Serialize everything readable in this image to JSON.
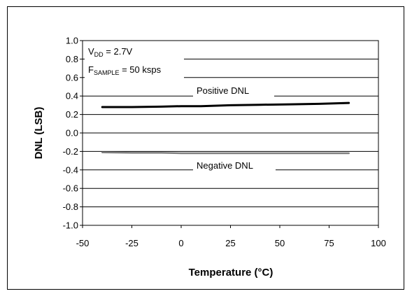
{
  "chart_data": {
    "type": "line",
    "title": "",
    "xlabel": "Temperature (°C)",
    "ylabel": "DNL (LSB)",
    "xlim": [
      -50,
      100
    ],
    "ylim": [
      -1.0,
      1.0
    ],
    "x_ticks": [
      "-50",
      "-25",
      "0",
      "25",
      "50",
      "75",
      "100"
    ],
    "y_ticks": [
      "1.0",
      "0.8",
      "0.6",
      "0.4",
      "0.2",
      "0.0",
      "-0.2",
      "-0.4",
      "-0.6",
      "-0.8",
      "-1.0"
    ],
    "grid": "horizontal",
    "series": [
      {
        "name": "Positive DNL",
        "color": "#000000",
        "x": [
          -40,
          -25,
          -10,
          0,
          10,
          25,
          40,
          55,
          70,
          85
        ],
        "y": [
          0.28,
          0.28,
          0.285,
          0.29,
          0.29,
          0.3,
          0.305,
          0.31,
          0.315,
          0.325
        ]
      },
      {
        "name": "Negative DNL",
        "color": "#808080",
        "x": [
          -40,
          -25,
          -10,
          0,
          10,
          25,
          40,
          55,
          70,
          85
        ],
        "y": [
          -0.21,
          -0.215,
          -0.215,
          -0.22,
          -0.22,
          -0.22,
          -0.22,
          -0.22,
          -0.22,
          -0.22
        ]
      }
    ],
    "annotation": {
      "line1_main": "V",
      "line1_sub": "DD",
      "line1_rest": " = 2.7V",
      "line2_main": "F",
      "line2_sub": "SAMPLE",
      "line2_rest": " = 50 ksps"
    }
  }
}
